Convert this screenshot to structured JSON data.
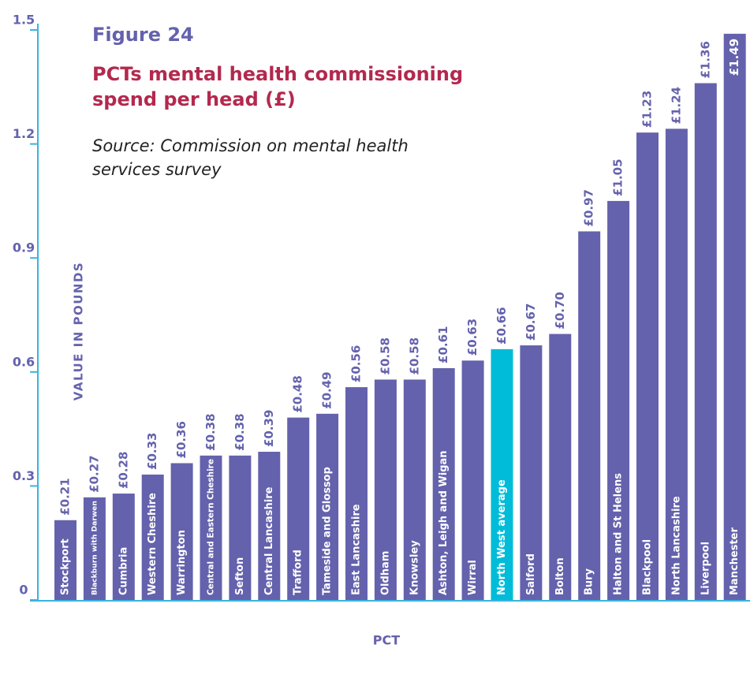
{
  "chart_data": {
    "type": "bar",
    "title": "Figure 24",
    "subtitle": "PCTs mental health commissioning spend per head (£)",
    "source": "Source: Commission on mental health services survey",
    "y_label": "VALUE IN POUNDS",
    "x_label": "PCT",
    "categories": [
      "Stockport",
      "Blackburn with Darwen",
      "Cumbria",
      "Western Cheshire",
      "Warrington",
      "Central and Eastern Cheshire",
      "Sefton",
      "Central Lancashire",
      "Trafford",
      "Tameside and Glossop",
      "East Lancashire",
      "Oldham",
      "Knowsley",
      "Ashton, Leigh and Wigan",
      "Wirral",
      "North West  average",
      "Salford",
      "Bolton",
      "Bury",
      "Halton and St Helens",
      "Blackpool",
      "North Lancashire",
      "Liverpool",
      "Manchester"
    ],
    "values": [
      0.21,
      0.27,
      0.28,
      0.33,
      0.36,
      0.38,
      0.38,
      0.39,
      0.48,
      0.49,
      0.56,
      0.58,
      0.58,
      0.61,
      0.63,
      0.66,
      0.67,
      0.7,
      0.97,
      1.05,
      1.23,
      1.24,
      1.36,
      1.49
    ],
    "value_labels": [
      "£0.21",
      "£0.27",
      "£0.28",
      "£0.33",
      "£0.36",
      "£0.38",
      "£0.38",
      "£0.39",
      "£0.48",
      "£0.49",
      "£0.56",
      "£0.58",
      "£0.58",
      "£0.61",
      "£0.63",
      "£0.66",
      "£0.67",
      "£0.70",
      "£0.97",
      "£1.05",
      "£1.23",
      "£1.24",
      "£1.36",
      "£1.49"
    ],
    "colors": [
      "#6462ad",
      "#6462ad",
      "#6462ad",
      "#6462ad",
      "#6462ad",
      "#6462ad",
      "#6462ad",
      "#6462ad",
      "#6462ad",
      "#6462ad",
      "#6462ad",
      "#6462ad",
      "#6462ad",
      "#6462ad",
      "#6462ad",
      "#00bcd9",
      "#6462ad",
      "#6462ad",
      "#6462ad",
      "#6462ad",
      "#6462ad",
      "#6462ad",
      "#6462ad",
      "#6462ad"
    ],
    "ylim": [
      0,
      1.5
    ],
    "yticks": [
      0,
      0.3,
      0.6,
      0.9,
      1.2,
      1.5
    ],
    "grid": false
  }
}
